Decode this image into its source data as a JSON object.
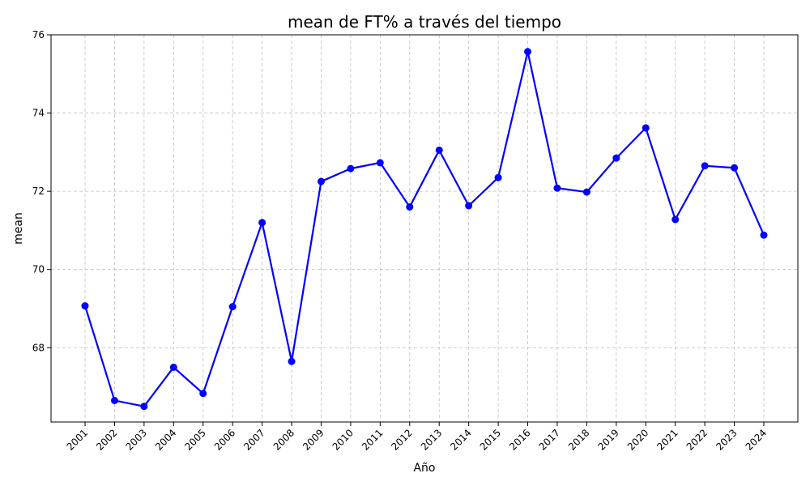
{
  "chart_data": {
    "type": "line",
    "title": "mean de FT% a través del tiempo",
    "xlabel": "Año",
    "ylabel": "mean",
    "x": [
      "2001",
      "2002",
      "2003",
      "2004",
      "2005",
      "2006",
      "2007",
      "2008",
      "2009",
      "2010",
      "2011",
      "2012",
      "2013",
      "2014",
      "2015",
      "2016",
      "2017",
      "2018",
      "2019",
      "2020",
      "2021",
      "2022",
      "2023",
      "2024"
    ],
    "series": [
      {
        "values": [
          69.07,
          66.65,
          66.5,
          67.5,
          66.83,
          69.05,
          71.2,
          67.65,
          72.25,
          72.58,
          72.73,
          71.6,
          73.05,
          71.63,
          72.35,
          75.57,
          72.08,
          71.98,
          72.85,
          73.62,
          71.28,
          72.65,
          72.6,
          70.88
        ]
      }
    ],
    "ylim": [
      66.1,
      76.0
    ],
    "yticks": [
      68,
      70,
      72,
      74,
      76
    ],
    "grid": true,
    "color": "#0000ff"
  }
}
